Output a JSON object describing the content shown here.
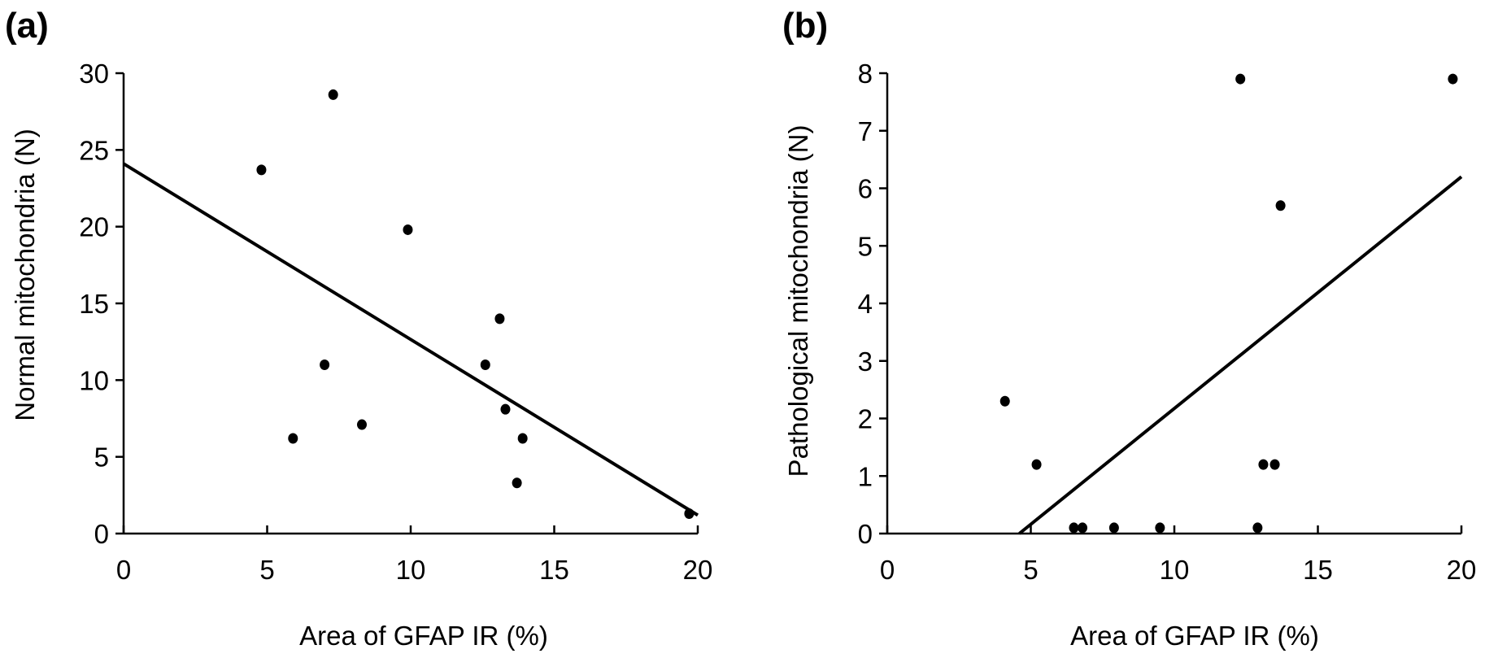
{
  "chart_data": [
    {
      "panel_label": "(a)",
      "type": "scatter",
      "xlabel": "Area of GFAP IR (%)",
      "ylabel": "Normal mitochondria (N)",
      "xlim": [
        0,
        20
      ],
      "ylim": [
        0,
        30
      ],
      "x_ticks": [
        0,
        5,
        10,
        15,
        20
      ],
      "y_ticks": [
        0,
        5,
        10,
        15,
        20,
        25,
        30
      ],
      "x_tick_labels": [
        "0",
        "5",
        "10",
        "15",
        "20"
      ],
      "y_tick_labels": [
        "0",
        "5",
        "10",
        "15",
        "20",
        "25",
        "30"
      ],
      "points": [
        {
          "x": 4.8,
          "y": 23.7
        },
        {
          "x": 5.9,
          "y": 6.2
        },
        {
          "x": 7.0,
          "y": 11.0
        },
        {
          "x": 7.3,
          "y": 28.6
        },
        {
          "x": 8.3,
          "y": 7.1
        },
        {
          "x": 9.9,
          "y": 19.8
        },
        {
          "x": 12.6,
          "y": 11.0
        },
        {
          "x": 13.1,
          "y": 14.0
        },
        {
          "x": 13.3,
          "y": 8.1
        },
        {
          "x": 13.7,
          "y": 3.3
        },
        {
          "x": 13.9,
          "y": 6.2
        },
        {
          "x": 19.7,
          "y": 1.3
        }
      ],
      "regression_line": [
        {
          "x": 0,
          "y": 24.1
        },
        {
          "x": 20,
          "y": 1.2
        }
      ],
      "grid": false
    },
    {
      "panel_label": "(b)",
      "type": "scatter",
      "xlabel": "Area of GFAP IR (%)",
      "ylabel": "Pathological mitochondria (N)",
      "xlim": [
        0,
        20
      ],
      "ylim": [
        0,
        8
      ],
      "x_ticks": [
        0,
        5,
        10,
        15,
        20
      ],
      "y_ticks": [
        0,
        1,
        2,
        3,
        4,
        5,
        6,
        7,
        8
      ],
      "x_tick_labels": [
        "0",
        "5",
        "10",
        "15",
        "20"
      ],
      "y_tick_labels": [
        "0",
        "1",
        "2",
        "3",
        "4",
        "5",
        "6",
        "7",
        "8"
      ],
      "points": [
        {
          "x": 4.1,
          "y": 2.3
        },
        {
          "x": 5.2,
          "y": 1.2
        },
        {
          "x": 6.5,
          "y": 0.1
        },
        {
          "x": 6.8,
          "y": 0.1
        },
        {
          "x": 7.9,
          "y": 0.1
        },
        {
          "x": 9.5,
          "y": 0.1
        },
        {
          "x": 12.3,
          "y": 7.9
        },
        {
          "x": 12.9,
          "y": 0.1
        },
        {
          "x": 13.1,
          "y": 1.2
        },
        {
          "x": 13.5,
          "y": 1.2
        },
        {
          "x": 13.7,
          "y": 5.7
        },
        {
          "x": 19.7,
          "y": 7.9
        }
      ],
      "regression_line": [
        {
          "x": 4.6,
          "y": 0
        },
        {
          "x": 20,
          "y": 6.2
        }
      ],
      "grid": false
    }
  ]
}
